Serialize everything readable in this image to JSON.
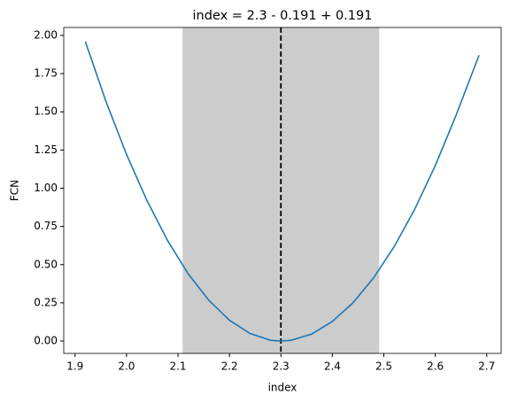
{
  "chart_data": {
    "type": "line",
    "title": "index = 2.3 - 0.191 + 0.191",
    "xlabel": "index",
    "ylabel": "FCN",
    "x": [
      1.92,
      1.96,
      2.0,
      2.04,
      2.08,
      2.12,
      2.16,
      2.2,
      2.24,
      2.28,
      2.3,
      2.32,
      2.36,
      2.4,
      2.44,
      2.48,
      2.52,
      2.56,
      2.6,
      2.64,
      2.685
    ],
    "series": [
      {
        "color": "#1f77b4",
        "values": [
          1.959,
          1.568,
          1.221,
          0.917,
          0.656,
          0.439,
          0.266,
          0.136,
          0.049,
          0.005,
          0,
          0.005,
          0.046,
          0.128,
          0.25,
          0.413,
          0.617,
          0.862,
          1.148,
          1.474,
          1.87
        ]
      }
    ],
    "band": [
      2.109,
      2.491
    ],
    "band_color": "#cccccc",
    "vline": 2.3,
    "vline_color": "#000000",
    "xlim": [
      1.878,
      2.728
    ],
    "ylim": [
      -0.081,
      2.052
    ],
    "xticks": [
      1.9,
      {
        "value": 2,
        "label": "2.0"
      },
      2.1,
      2.2,
      2.3,
      2.4,
      2.5,
      2.6,
      2.7
    ],
    "yticks": [
      {
        "value": 0,
        "label": "0.00"
      },
      {
        "value": 0.25,
        "label": "0.25"
      },
      {
        "value": 0.5,
        "label": "0.50"
      },
      {
        "value": 0.75,
        "label": "0.75"
      },
      {
        "value": 1,
        "label": "1.00"
      },
      {
        "value": 1.25,
        "label": "1.25"
      },
      {
        "value": 1.5,
        "label": "1.50"
      },
      {
        "value": 1.75,
        "label": "1.75"
      },
      {
        "value": 2,
        "label": "2.00"
      }
    ]
  }
}
